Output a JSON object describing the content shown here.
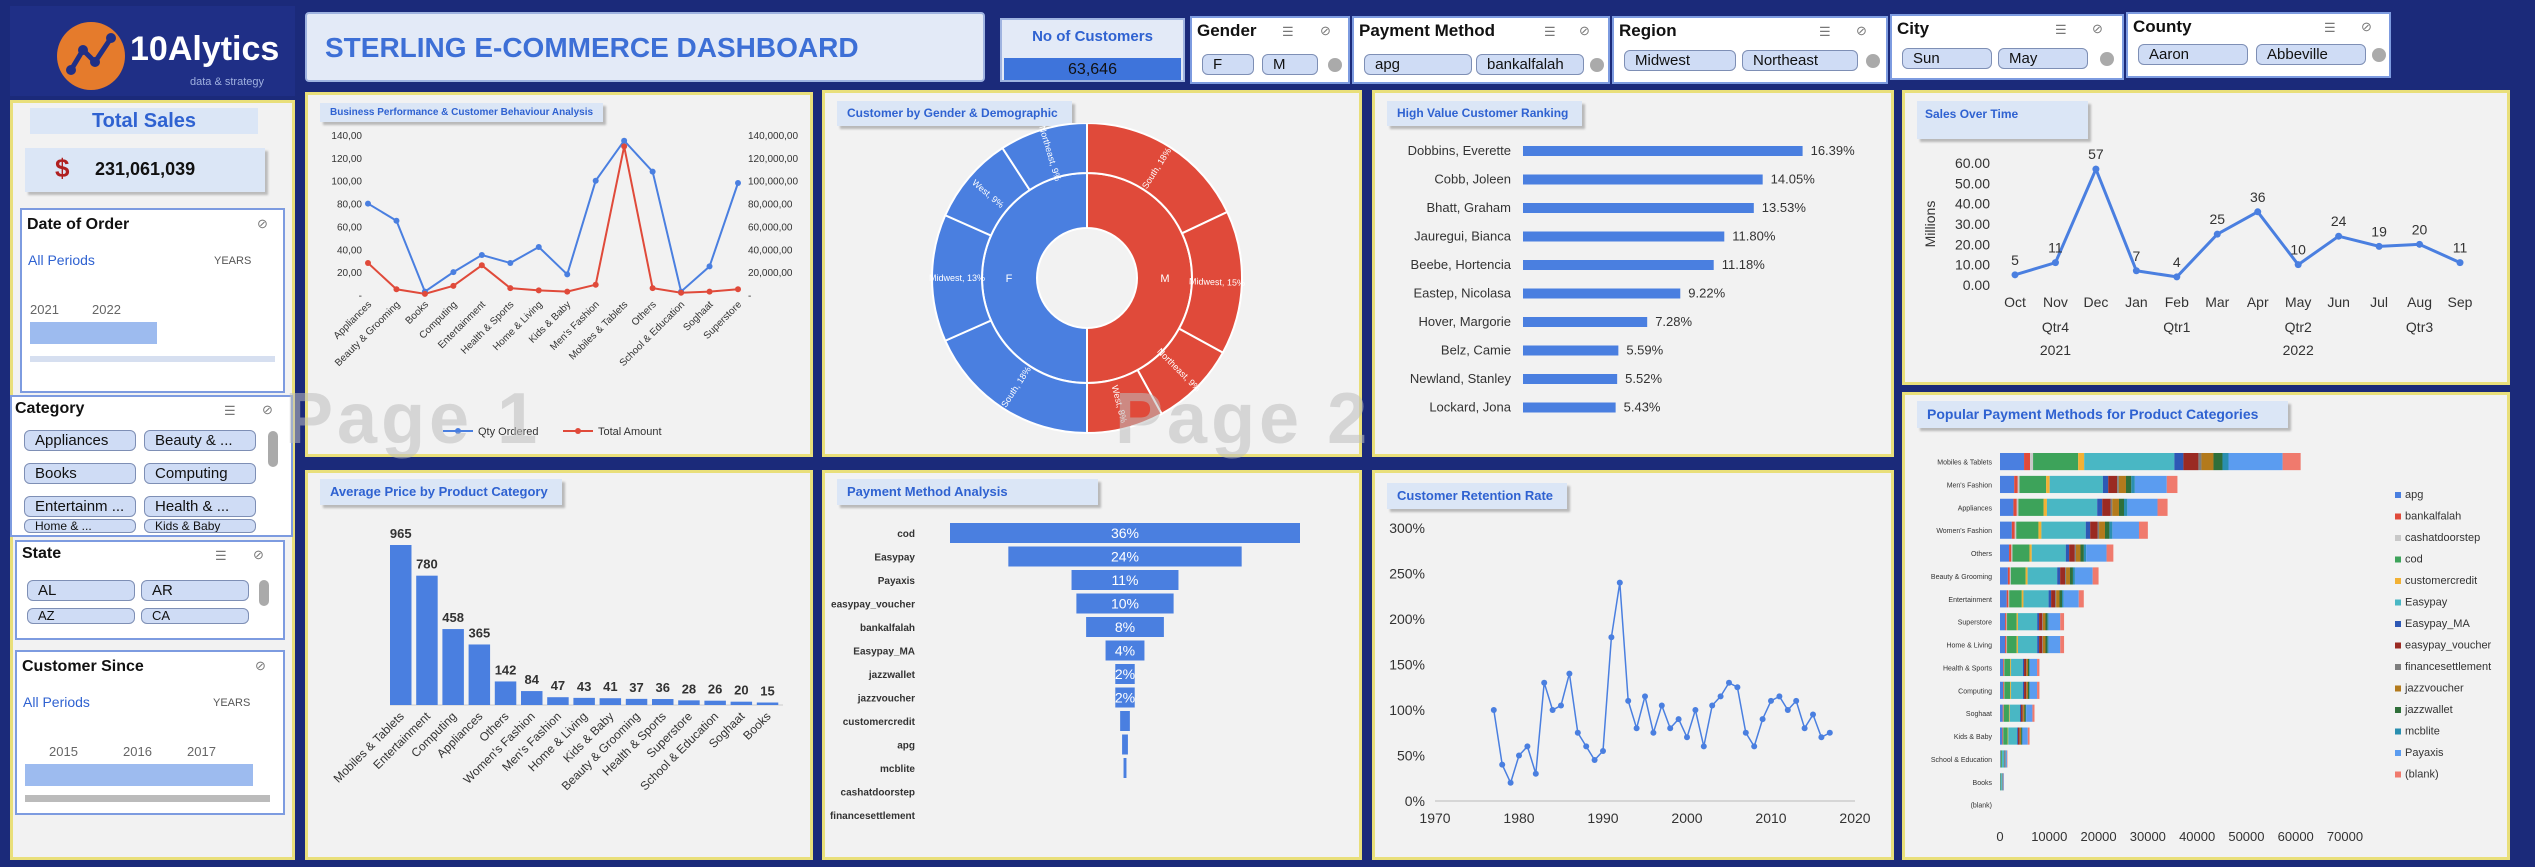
{
  "logo": {
    "brand": "10Alytics",
    "tagline": "data & strategy"
  },
  "header": {
    "title": "STERLING E-COMMERCE DASHBOARD"
  },
  "kpi_customers": {
    "label": "No of Customers",
    "value": "63,646"
  },
  "kpi_sales": {
    "label": "Total Sales",
    "value": "231,061,039",
    "icon": "dollar-sign-icon"
  },
  "slicers": {
    "gender": {
      "title": "Gender",
      "items": [
        "F",
        "M"
      ]
    },
    "payment": {
      "title": "Payment Method",
      "items": [
        "apg",
        "bankalfalah"
      ]
    },
    "region": {
      "title": "Region",
      "items": [
        "Midwest",
        "Northeast"
      ]
    },
    "city": {
      "title": "City",
      "items": [
        "Sun",
        "May"
      ]
    },
    "county": {
      "title": "County",
      "items": [
        "Aaron",
        "Abbeville"
      ]
    },
    "category": {
      "title": "Category",
      "items": [
        "Appliances",
        "Beauty & ...",
        "Books",
        "Computing",
        "Entertainm ...",
        "Health & ...",
        "Home & ...",
        "Kids & Baby"
      ]
    },
    "state": {
      "title": "State",
      "items": [
        "AL",
        "AR",
        "AZ",
        "CA"
      ]
    }
  },
  "timeline_order": {
    "title": "Date of Order",
    "period": "All Periods",
    "unit": "YEARS",
    "years": [
      "2021",
      "2022"
    ]
  },
  "timeline_since": {
    "title": "Customer Since",
    "period": "All Periods",
    "unit": "YEARS",
    "years": [
      "2015",
      "2016",
      "2017"
    ]
  },
  "watermark": {
    "p1": "Page 1",
    "p2": "Page 2"
  },
  "colors": {
    "blue": "#4a7fe0",
    "red": "#e04a3a",
    "title_blue": "#2f62d1",
    "panel_border": "#e9df7a"
  },
  "charts": {
    "business": {
      "title": "Business Performance & Customer Behaviour Analysis",
      "left_ticks": [
        "140,00",
        "120,00",
        "100,00",
        "80,00",
        "60,00",
        "40,00",
        "20,00",
        "-"
      ],
      "right_ticks": [
        "140,000,00",
        "120,000,00",
        "100,000,00",
        "80,000,00",
        "60,000,00",
        "40,000,00",
        "20,000,00",
        "-"
      ],
      "legend": [
        "Qty Ordered",
        "Total Amount"
      ]
    },
    "gender": {
      "title": "Customer by Gender & Demographic",
      "inner": [
        {
          "label": "F",
          "pct": 50
        },
        {
          "label": "M",
          "pct": 50
        }
      ],
      "outer_labels": [
        "South, 18%",
        "Midwest, 15%",
        "Northeast, 9%",
        "West, 8%",
        "South, 18%",
        "Midwest, 13%",
        "West, 9%",
        "Northeast, 9%"
      ]
    },
    "ranking": {
      "title": "High Value Customer Ranking"
    },
    "sales_time": {
      "title": "Sales Over Time",
      "ylabel": "Millions",
      "quarters": [
        "Qtr4",
        "Qtr1",
        "Qtr2",
        "Qtr3"
      ],
      "years": [
        "2021",
        "2022"
      ]
    },
    "avg_price": {
      "title": "Average Price by Product Category"
    },
    "payment_analysis": {
      "title": "Payment Method Analysis"
    },
    "retention": {
      "title": "Customer Retention Rate"
    },
    "popular": {
      "title": "Popular Payment Methods for Product Categories"
    }
  },
  "chart_data": [
    {
      "type": "line",
      "title": "Business Performance & Customer Behaviour Analysis",
      "categories": [
        "Appliances",
        "Beauty & Grooming",
        "Books",
        "Computing",
        "Entertainment",
        "Health & Sports",
        "Home & Living",
        "Kids & Baby",
        "Men's Fashion",
        "Mobiles & Tablets",
        "Others",
        "School & Education",
        "Soghaat",
        "Superstore"
      ],
      "series": [
        {
          "name": "Qty Ordered",
          "values": [
            80000,
            65000,
            3000,
            20000,
            35000,
            28000,
            42000,
            18000,
            100000,
            135000,
            108000,
            3000,
            25000,
            98000
          ]
        },
        {
          "name": "Total Amount",
          "values": [
            28000000,
            5000000,
            1000000,
            8000000,
            26000000,
            6000000,
            4000000,
            3000000,
            9000000,
            130000000,
            6000000,
            2000000,
            3000000,
            5000000
          ]
        }
      ],
      "ylim": [
        0,
        140000
      ],
      "y2lim": [
        0,
        140000000
      ]
    },
    {
      "type": "pie",
      "title": "Customer by Gender & Demographic",
      "inner": [
        {
          "label": "F",
          "value": 50
        },
        {
          "label": "M",
          "value": 50
        }
      ],
      "outer": [
        {
          "label": "South",
          "gender": "M",
          "value": 18
        },
        {
          "label": "Midwest",
          "gender": "M",
          "value": 15
        },
        {
          "label": "Northeast",
          "gender": "M",
          "value": 9
        },
        {
          "label": "West",
          "gender": "M",
          "value": 8
        },
        {
          "label": "South",
          "gender": "F",
          "value": 18
        },
        {
          "label": "Midwest",
          "gender": "F",
          "value": 13
        },
        {
          "label": "West",
          "gender": "F",
          "value": 9
        },
        {
          "label": "Northeast",
          "gender": "F",
          "value": 9
        }
      ]
    },
    {
      "type": "bar",
      "title": "High Value Customer Ranking",
      "categories": [
        "Dobbins, Everette",
        "Cobb, Joleen",
        "Bhatt, Graham",
        "Jauregui, Bianca",
        "Beebe, Hortencia",
        "Eastep, Nicolasa",
        "Hover, Margorie",
        "Belz, Camie",
        "Newland, Stanley",
        "Lockard, Jona"
      ],
      "values": [
        16.39,
        14.05,
        13.53,
        11.8,
        11.18,
        9.22,
        7.28,
        5.59,
        5.52,
        5.43
      ],
      "labels": [
        "16.39%",
        "14.05%",
        "13.53%",
        "11.80%",
        "11.18%",
        "9.22%",
        "7.28%",
        "5.59%",
        "5.52%",
        "5.43%"
      ]
    },
    {
      "type": "line",
      "title": "Sales Over Time",
      "categories": [
        "Oct",
        "Nov",
        "Dec",
        "Jan",
        "Feb",
        "Mar",
        "Apr",
        "May",
        "Jun",
        "Jul",
        "Aug",
        "Sep"
      ],
      "values": [
        5,
        11,
        57,
        7,
        4,
        25,
        36,
        10,
        24,
        19,
        20,
        11
      ],
      "ylabel": "Millions",
      "yticks": [
        "60.00",
        "50.00",
        "40.00",
        "30.00",
        "20.00",
        "10.00",
        "0.00"
      ],
      "ylim": [
        0,
        60
      ]
    },
    {
      "type": "bar",
      "title": "Average Price by Product Category",
      "categories": [
        "Mobiles & Tablets",
        "Entertainment",
        "Computing",
        "Appliances",
        "Others",
        "Women's Fashion",
        "Men's Fashion",
        "Home & Living",
        "Kids & Baby",
        "Beauty & Grooming",
        "Health & Sports",
        "Superstore",
        "School & Education",
        "Soghaat",
        "Books"
      ],
      "values": [
        965,
        780,
        458,
        365,
        142,
        84,
        47,
        43,
        41,
        37,
        36,
        28,
        26,
        20,
        15
      ]
    },
    {
      "type": "bar",
      "title": "Payment Method Analysis",
      "categories": [
        "cod",
        "Easypay",
        "Payaxis",
        "easypay_voucher",
        "bankalfalah",
        "Easypay_MA",
        "jazzwallet",
        "jazzvoucher",
        "customercredit",
        "apg",
        "mcblite",
        "cashatdoorstep",
        "financesettlement"
      ],
      "values": [
        36,
        24,
        11,
        10,
        8,
        4,
        2,
        2,
        1,
        0.6,
        0.3,
        0,
        0
      ],
      "labels": [
        "36%",
        "24%",
        "11%",
        "10%",
        "8%",
        "4%",
        "2%",
        "2%",
        "",
        "",
        "",
        "",
        ""
      ]
    },
    {
      "type": "line",
      "title": "Customer Retention Rate",
      "x": [
        1977,
        1978,
        1979,
        1980,
        1981,
        1982,
        1983,
        1984,
        1985,
        1986,
        1987,
        1988,
        1989,
        1990,
        1991,
        1992,
        1993,
        1994,
        1995,
        1996,
        1997,
        1998,
        1999,
        2000,
        2001,
        2002,
        2003,
        2004,
        2005,
        2006,
        2007,
        2008,
        2009,
        2010,
        2011,
        2012,
        2013,
        2014,
        2015,
        2016,
        2017
      ],
      "values": [
        100,
        40,
        20,
        50,
        60,
        30,
        130,
        100,
        105,
        140,
        75,
        60,
        45,
        55,
        180,
        240,
        110,
        80,
        115,
        75,
        105,
        80,
        90,
        70,
        100,
        60,
        105,
        115,
        130,
        125,
        75,
        60,
        90,
        110,
        115,
        100,
        110,
        80,
        95,
        70,
        75
      ],
      "xlim": [
        1970,
        2020
      ],
      "ylim": [
        0,
        300
      ],
      "yticks": [
        "300%",
        "250%",
        "200%",
        "150%",
        "100%",
        "50%",
        "0%"
      ],
      "xticks": [
        "1970",
        "1980",
        "1990",
        "2000",
        "2010",
        "2020"
      ]
    },
    {
      "type": "bar",
      "stacked": true,
      "title": "Popular Payment Methods for Product Categories",
      "categories": [
        "Mobiles & Tablets",
        "Men's Fashion",
        "Appliances",
        "Women's Fashion",
        "Others",
        "Beauty & Grooming",
        "Entertainment",
        "Superstore",
        "Home & Living",
        "Health & Sports",
        "Computing",
        "Soghaat",
        "Kids & Baby",
        "School & Education",
        "Books",
        "(blank)"
      ],
      "series_names": [
        "apg",
        "bankalfalah",
        "cashatdoorstep",
        "cod",
        "customercredit",
        "Easypay",
        "Easypay_MA",
        "easypay_voucher",
        "financesettlement",
        "jazzvoucher",
        "jazzwallet",
        "mcblite",
        "Payaxis",
        "(blank)"
      ],
      "totals": [
        61000,
        36000,
        34000,
        30000,
        23000,
        20000,
        17000,
        13000,
        13000,
        8000,
        8000,
        7000,
        6000,
        1500,
        800,
        0
      ],
      "xticks": [
        "0",
        "10000",
        "20000",
        "30000",
        "40000",
        "50000",
        "60000",
        "70000"
      ],
      "xlim": [
        0,
        70000
      ]
    }
  ]
}
